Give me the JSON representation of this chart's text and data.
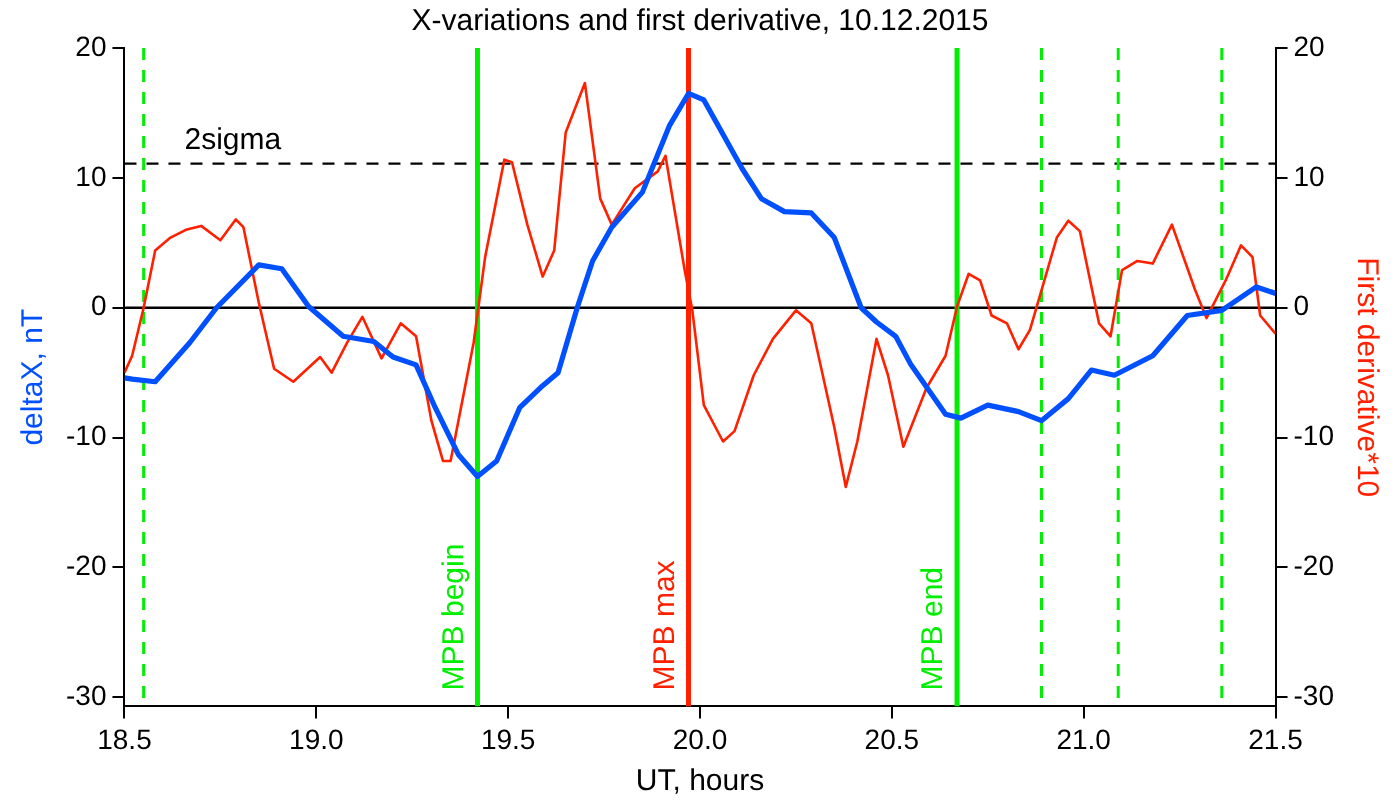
{
  "chart_data": {
    "type": "line",
    "title": "X-variations and first derivative, 10.12.2015",
    "xlabel": "UT, hours",
    "ylabel": "deltaX, nT",
    "y2label": "First derivative*10",
    "xlim": [
      18.5,
      21.5
    ],
    "xticks": [
      18.5,
      {
        "value": 19,
        "label": "19.0"
      },
      19.5,
      {
        "value": 20,
        "label": "20.0"
      },
      20.5,
      {
        "value": 21,
        "label": "21.0"
      },
      21.5
    ],
    "ylim": [
      -30.7,
      20
    ],
    "yticks": [
      -30,
      -20,
      -10,
      0,
      10,
      20
    ],
    "y2lim": [
      -30.7,
      20
    ],
    "y2ticks": [
      -30,
      -20,
      -10,
      0,
      10,
      20
    ],
    "grid": false,
    "legend": false,
    "marker": "none",
    "line_style": "solid",
    "series": [
      {
        "color": "#0050ff",
        "x": [
          18.5,
          18.52,
          18.58,
          18.67,
          18.74,
          18.85,
          18.91,
          18.98,
          19.07,
          19.15,
          19.2,
          19.26,
          19.31,
          19.37,
          19.42,
          19.47,
          19.53,
          19.59,
          19.63,
          19.68,
          19.72,
          19.77,
          19.85,
          19.92,
          19.97,
          20.01,
          20.11,
          20.16,
          20.22,
          20.29,
          20.35,
          20.42,
          20.46,
          20.51,
          20.55,
          20.64,
          20.68,
          20.75,
          20.83,
          20.89,
          20.96,
          21.02,
          21.08,
          21.18,
          21.27,
          21.36,
          21.45,
          21.5
        ],
        "values": [
          -5.4,
          -5.5,
          -5.7,
          -2.7,
          0,
          3.3,
          3.0,
          0.1,
          -2.2,
          -2.6,
          -3.8,
          -4.4,
          -7.7,
          -11.3,
          -13.0,
          -11.8,
          -7.7,
          -6.0,
          -5.0,
          0,
          3.6,
          6.2,
          8.9,
          14.0,
          16.5,
          16.0,
          10.7,
          8.4,
          7.4,
          7.3,
          5.4,
          0,
          -1.1,
          -2.2,
          -4.4,
          -8.2,
          -8.5,
          -7.5,
          -8.0,
          -8.7,
          -7.0,
          -4.8,
          -5.2,
          -3.7,
          -0.6,
          -0.2,
          1.6,
          1.1
        ]
      },
      {
        "color": "#ff2000",
        "axis": "y2",
        "x": [
          18.5,
          18.52,
          18.55,
          18.58,
          18.62,
          18.66,
          18.7,
          18.75,
          18.79,
          18.81,
          18.85,
          18.89,
          18.94,
          19.01,
          19.04,
          19.08,
          19.12,
          19.17,
          19.22,
          19.26,
          19.3,
          19.33,
          19.35,
          19.41,
          19.44,
          19.49,
          19.51,
          19.55,
          19.59,
          19.62,
          19.65,
          19.7,
          19.74,
          19.77,
          19.83,
          19.89,
          19.91,
          19.96,
          19.98,
          20.01,
          20.06,
          20.09,
          20.14,
          20.19,
          20.25,
          20.29,
          20.35,
          20.38,
          20.41,
          20.46,
          20.49,
          20.53,
          20.59,
          20.64,
          20.67,
          20.7,
          20.73,
          20.76,
          20.8,
          20.83,
          20.86,
          20.93,
          20.96,
          20.99,
          21.04,
          21.07,
          21.1,
          21.14,
          21.18,
          21.23,
          21.29,
          21.32,
          21.37,
          21.41,
          21.44,
          21.46,
          21.5
        ],
        "values": [
          -5.0,
          -3.7,
          0,
          4.4,
          5.4,
          6.0,
          6.3,
          5.2,
          6.8,
          6.2,
          0.4,
          -4.7,
          -5.7,
          -3.8,
          -5.0,
          -2.7,
          -0.7,
          -3.9,
          -1.2,
          -2.2,
          -8.7,
          -11.8,
          -11.8,
          -2.7,
          3.9,
          11.4,
          11.2,
          6.4,
          2.4,
          4.4,
          13.5,
          17.3,
          8.4,
          6.4,
          9.2,
          10.5,
          11.7,
          2.9,
          -0.2,
          -7.5,
          -10.3,
          -9.5,
          -5.2,
          -2.4,
          -0.2,
          -1.2,
          -9.2,
          -13.8,
          -10.3,
          -2.4,
          -5.2,
          -10.7,
          -6.2,
          -3.7,
          0.1,
          2.6,
          2.1,
          -0.6,
          -1.2,
          -3.2,
          -1.7,
          5.4,
          6.7,
          5.9,
          -1.2,
          -2.2,
          2.9,
          3.6,
          3.4,
          6.4,
          1.4,
          -0.8,
          2.1,
          4.8,
          3.9,
          -0.6,
          -2.0
        ]
      }
    ],
    "ref_lines": [
      {
        "axis": "y",
        "value": 0,
        "color": "#000000",
        "line_style": "solid"
      },
      {
        "axis": "y",
        "value": 11.1,
        "label": "2sigma",
        "color": "#000000",
        "line_style": "dashed"
      },
      {
        "axis": "x",
        "value": 18.55,
        "color": "#00ee00",
        "line_style": "dashed"
      },
      {
        "axis": "x",
        "value": 19.42,
        "label": "MPB begin",
        "color": "#00ee00",
        "line_style": "solid"
      },
      {
        "axis": "x",
        "value": 19.97,
        "label": "MPB max",
        "color": "#ff2000",
        "line_style": "solid"
      },
      {
        "axis": "x",
        "value": 20.67,
        "label": "MPB end",
        "color": "#00ee00",
        "line_style": "solid"
      },
      {
        "axis": "x",
        "value": 20.89,
        "color": "#00ee00",
        "line_style": "dashed"
      },
      {
        "axis": "x",
        "value": 21.09,
        "color": "#00ee00",
        "line_style": "dashed"
      },
      {
        "axis": "x",
        "value": 21.36,
        "color": "#00ee00",
        "line_style": "dashed"
      }
    ]
  }
}
